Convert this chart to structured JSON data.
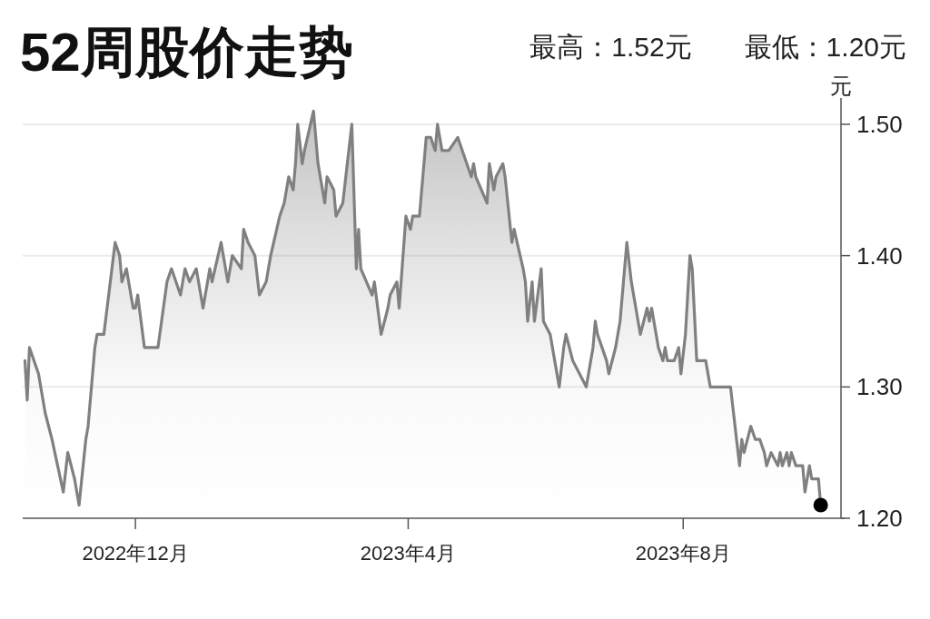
{
  "chart_data": {
    "type": "area",
    "title": "52周股价走势",
    "annotations": [
      "最高：1.52元",
      "最低：1.20元"
    ],
    "ylabel": "元",
    "xlim": [
      "2022-10-12",
      "2023-10-10"
    ],
    "xticks": [
      {
        "value": "2022-12-01",
        "label": "2022年12月"
      },
      {
        "value": "2023-04-01",
        "label": "2023年4月"
      },
      {
        "value": "2023-08-01",
        "label": "2023年8月"
      }
    ],
    "ylim": [
      1.2,
      1.52
    ],
    "yticks": [
      {
        "value": 1.2,
        "label": "1.20"
      },
      {
        "value": 1.3,
        "label": "1.30"
      },
      {
        "value": 1.4,
        "label": "1.40"
      },
      {
        "value": 1.5,
        "label": "1.50"
      }
    ],
    "grid": "y",
    "series": [
      {
        "color": "#808080",
        "x": [
          "2022-10-13",
          "2022-10-14",
          "2022-10-15",
          "2022-10-19",
          "2022-10-22",
          "2022-10-25",
          "2022-10-30",
          "2022-11-01",
          "2022-11-04",
          "2022-11-06",
          "2022-11-09",
          "2022-11-10",
          "2022-11-13",
          "2022-11-14",
          "2022-11-17",
          "2022-11-22",
          "2022-11-24",
          "2022-11-25",
          "2022-11-27",
          "2022-11-30",
          "2022-12-01",
          "2022-12-02",
          "2022-12-05",
          "2022-12-11",
          "2022-12-15",
          "2022-12-17",
          "2022-12-21",
          "2022-12-23",
          "2022-12-25",
          "2022-12-28",
          "2022-12-29",
          "2022-12-31",
          "2023-01-03",
          "2023-01-04",
          "2023-01-08",
          "2023-01-11",
          "2023-01-13",
          "2023-01-17",
          "2023-01-18",
          "2023-01-20",
          "2023-01-23",
          "2023-01-25",
          "2023-01-28",
          "2023-01-30",
          "2023-02-03",
          "2023-02-05",
          "2023-02-07",
          "2023-02-09",
          "2023-02-10",
          "2023-02-11",
          "2023-02-13",
          "2023-02-14",
          "2023-02-18",
          "2023-02-20",
          "2023-02-23",
          "2023-02-24",
          "2023-02-27",
          "2023-02-28",
          "2023-03-03",
          "2023-03-07",
          "2023-03-09",
          "2023-03-10",
          "2023-03-11",
          "2023-03-16",
          "2023-03-17",
          "2023-03-20",
          "2023-03-23",
          "2023-03-24",
          "2023-03-27",
          "2023-03-28",
          "2023-03-31",
          "2023-04-02",
          "2023-04-03",
          "2023-04-06",
          "2023-04-09",
          "2023-04-11",
          "2023-04-13",
          "2023-04-14",
          "2023-04-16",
          "2023-04-19",
          "2023-04-23",
          "2023-04-29",
          "2023-04-30",
          "2023-05-01",
          "2023-05-06",
          "2023-05-07",
          "2023-05-09",
          "2023-05-10",
          "2023-05-13",
          "2023-05-14",
          "2023-05-17",
          "2023-05-18",
          "2023-05-22",
          "2023-05-23",
          "2023-05-24",
          "2023-05-26",
          "2023-05-27",
          "2023-05-30",
          "2023-05-31",
          "2023-06-03",
          "2023-06-05",
          "2023-06-07",
          "2023-06-09",
          "2023-06-10",
          "2023-06-13",
          "2023-06-16",
          "2023-06-19",
          "2023-06-22",
          "2023-06-23",
          "2023-06-24",
          "2023-06-28",
          "2023-06-29",
          "2023-07-02",
          "2023-07-04",
          "2023-07-07",
          "2023-07-09",
          "2023-07-12",
          "2023-07-13",
          "2023-07-16",
          "2023-07-17",
          "2023-07-18",
          "2023-07-21",
          "2023-07-23",
          "2023-07-24",
          "2023-07-25",
          "2023-07-28",
          "2023-07-30",
          "2023-07-31",
          "2023-08-02",
          "2023-08-04",
          "2023-08-05",
          "2023-08-07",
          "2023-08-11",
          "2023-08-13",
          "2023-08-22",
          "2023-08-26",
          "2023-08-27",
          "2023-08-28",
          "2023-08-31",
          "2023-09-02",
          "2023-09-04",
          "2023-09-06",
          "2023-09-07",
          "2023-09-09",
          "2023-09-12",
          "2023-09-13",
          "2023-09-14",
          "2023-09-16",
          "2023-09-17",
          "2023-09-18",
          "2023-09-20",
          "2023-09-23",
          "2023-09-24",
          "2023-09-26",
          "2023-09-27",
          "2023-09-30",
          "2023-10-01"
        ],
        "values": [
          1.32,
          1.29,
          1.33,
          1.31,
          1.28,
          1.26,
          1.22,
          1.25,
          1.23,
          1.21,
          1.26,
          1.27,
          1.33,
          1.34,
          1.34,
          1.41,
          1.4,
          1.38,
          1.39,
          1.36,
          1.36,
          1.37,
          1.33,
          1.33,
          1.38,
          1.39,
          1.37,
          1.39,
          1.38,
          1.39,
          1.38,
          1.36,
          1.39,
          1.38,
          1.41,
          1.38,
          1.4,
          1.39,
          1.42,
          1.41,
          1.4,
          1.37,
          1.38,
          1.4,
          1.43,
          1.44,
          1.46,
          1.45,
          1.47,
          1.5,
          1.47,
          1.48,
          1.51,
          1.47,
          1.44,
          1.46,
          1.45,
          1.43,
          1.44,
          1.5,
          1.39,
          1.42,
          1.39,
          1.37,
          1.38,
          1.34,
          1.36,
          1.37,
          1.38,
          1.36,
          1.43,
          1.42,
          1.43,
          1.43,
          1.49,
          1.49,
          1.48,
          1.5,
          1.48,
          1.48,
          1.49,
          1.46,
          1.47,
          1.46,
          1.44,
          1.47,
          1.45,
          1.46,
          1.47,
          1.46,
          1.41,
          1.42,
          1.39,
          1.38,
          1.35,
          1.38,
          1.35,
          1.39,
          1.35,
          1.34,
          1.32,
          1.3,
          1.33,
          1.34,
          1.32,
          1.31,
          1.3,
          1.33,
          1.35,
          1.34,
          1.32,
          1.31,
          1.33,
          1.35,
          1.41,
          1.38,
          1.35,
          1.34,
          1.36,
          1.35,
          1.36,
          1.33,
          1.32,
          1.33,
          1.32,
          1.32,
          1.33,
          1.31,
          1.34,
          1.4,
          1.39,
          1.32,
          1.32,
          1.3,
          1.3,
          1.24,
          1.26,
          1.25,
          1.27,
          1.26,
          1.26,
          1.25,
          1.24,
          1.25,
          1.24,
          1.25,
          1.24,
          1.25,
          1.24,
          1.25,
          1.24,
          1.24,
          1.22,
          1.24,
          1.23,
          1.23,
          1.21
        ]
      },
      {
        "type": "scatter",
        "marker": "circle",
        "color": "#000000",
        "x": [
          "2023-10-01"
        ],
        "values": [
          1.21
        ]
      }
    ]
  }
}
